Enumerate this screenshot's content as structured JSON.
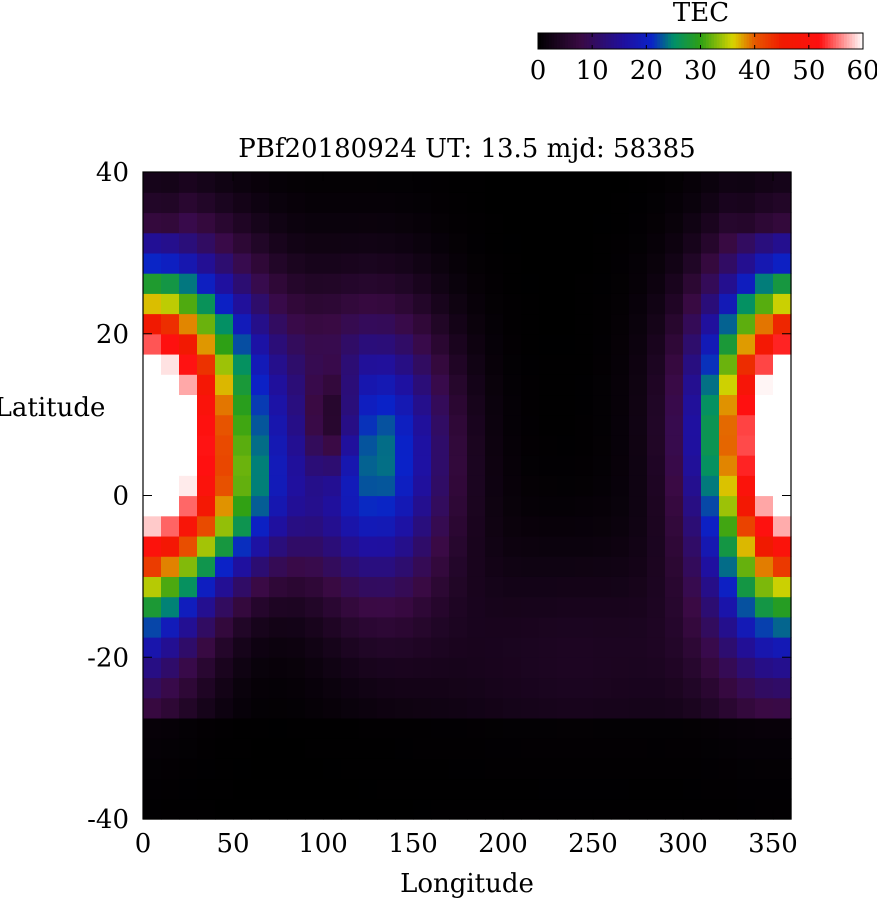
{
  "chart_data": {
    "type": "heatmap",
    "title": "PBf20180924  UT: 13.5  mjd: 58385",
    "xlabel": "Longitude",
    "ylabel": "Latitude",
    "xlim": [
      0,
      360
    ],
    "ylim": [
      -40,
      40
    ],
    "x_ticks": [
      0,
      50,
      100,
      150,
      200,
      250,
      300,
      350
    ],
    "y_ticks": [
      -40,
      -20,
      0,
      20,
      40
    ],
    "colorbar": {
      "label": "TEC",
      "range": [
        0,
        60
      ],
      "ticks": [
        0,
        10,
        20,
        30,
        40,
        50,
        60
      ],
      "colormap": [
        {
          "v": 0,
          "color": "#000000"
        },
        {
          "v": 8,
          "color": "#3a0a44"
        },
        {
          "v": 16,
          "color": "#1f10a0"
        },
        {
          "v": 21,
          "color": "#0a22c8"
        },
        {
          "v": 25,
          "color": "#008f6a"
        },
        {
          "v": 30,
          "color": "#2ea014"
        },
        {
          "v": 36,
          "color": "#d8d400"
        },
        {
          "v": 40,
          "color": "#e65a00"
        },
        {
          "v": 45,
          "color": "#f01a00"
        },
        {
          "v": 52,
          "color": "#ff1010"
        },
        {
          "v": 60,
          "color": "#ffffff"
        }
      ]
    },
    "grid_resolution": {
      "lon_step": 10,
      "lat_step": 2.5
    },
    "tec_features": [
      {
        "type": "peak",
        "lon": 15,
        "lat": 12,
        "sx": 55,
        "sy": 16,
        "amp": 40
      },
      {
        "type": "peak",
        "lon": 45,
        "lat": -2,
        "sx": 40,
        "sy": 9,
        "amp": 14
      },
      {
        "type": "peak",
        "lon": 130,
        "lat": 5,
        "sx": 40,
        "sy": 17,
        "amp": 24
      },
      {
        "type": "peak",
        "lon": 355,
        "lat": 2,
        "sx": 40,
        "sy": 21,
        "amp": 44
      },
      {
        "type": "dip",
        "lon": 105,
        "lat": 9,
        "sx": 14,
        "sy": 7,
        "amp": -13
      },
      {
        "type": "peak",
        "lon": 240,
        "lat": -20,
        "sx": 100,
        "sy": 14,
        "amp": 4
      }
    ]
  }
}
